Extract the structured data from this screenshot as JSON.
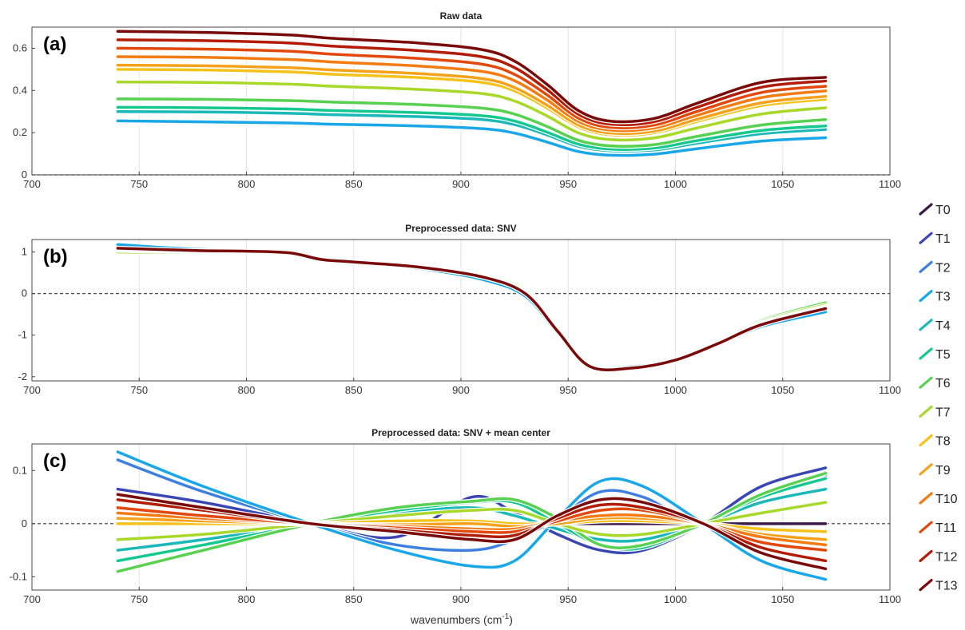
{
  "figure": {
    "xlabel": "wavenumbers (cm",
    "xlabel_sup": "-1",
    "xlabel_close": ")"
  },
  "legend": {
    "entries": [
      {
        "label": "T0",
        "color": "#3b1a4a"
      },
      {
        "label": "T1",
        "color": "#3a46b4"
      },
      {
        "label": "T2",
        "color": "#3f7fe0"
      },
      {
        "label": "T3",
        "color": "#1aa7e8"
      },
      {
        "label": "T4",
        "color": "#1ab8b8"
      },
      {
        "label": "T5",
        "color": "#14c890"
      },
      {
        "label": "T6",
        "color": "#58d150"
      },
      {
        "label": "T7",
        "color": "#a7d82a"
      },
      {
        "label": "T8",
        "color": "#f4c21a"
      },
      {
        "label": "T9",
        "color": "#f6a11a"
      },
      {
        "label": "T10",
        "color": "#f47a12"
      },
      {
        "label": "T11",
        "color": "#e2480c"
      },
      {
        "label": "T12",
        "color": "#b21c06"
      },
      {
        "label": "T13",
        "color": "#7a0a0a"
      }
    ]
  },
  "chart_data": [
    {
      "type": "line",
      "panel_label": "(a)",
      "title": "Raw data",
      "xlim": [
        700,
        1100
      ],
      "ylim": [
        0,
        0.7
      ],
      "xticks": [
        700,
        750,
        800,
        850,
        900,
        950,
        1000,
        1050,
        1100
      ],
      "yticks": [
        0,
        0.2,
        0.4,
        0.6
      ],
      "ytick_labels": [
        "0",
        "0.2",
        "0.4",
        "0.6"
      ],
      "grid": "vertical",
      "zero_line": "dashed",
      "x": [
        740,
        780,
        820,
        840,
        880,
        910,
        925,
        940,
        955,
        970,
        990,
        1010,
        1040,
        1070
      ],
      "series": [
        {
          "name": "T0",
          "values": [
            0.245,
            0.24,
            0.235,
            0.23,
            0.222,
            0.21,
            0.19,
            0.15,
            0.105,
            0.09,
            0.095,
            0.12,
            0.155,
            0.17
          ]
        },
        {
          "name": "T1",
          "values": [
            0.248,
            0.243,
            0.238,
            0.233,
            0.225,
            0.213,
            0.192,
            0.152,
            0.107,
            0.091,
            0.096,
            0.121,
            0.156,
            0.172
          ]
        },
        {
          "name": "T2",
          "values": [
            0.252,
            0.247,
            0.242,
            0.236,
            0.228,
            0.216,
            0.195,
            0.154,
            0.108,
            0.092,
            0.097,
            0.123,
            0.158,
            0.174
          ]
        },
        {
          "name": "T3",
          "values": [
            0.256,
            0.251,
            0.246,
            0.24,
            0.232,
            0.219,
            0.198,
            0.156,
            0.11,
            0.093,
            0.098,
            0.124,
            0.16,
            0.176
          ]
        },
        {
          "name": "T4",
          "values": [
            0.3,
            0.298,
            0.292,
            0.285,
            0.276,
            0.262,
            0.238,
            0.19,
            0.135,
            0.114,
            0.118,
            0.15,
            0.195,
            0.215
          ]
        },
        {
          "name": "T5",
          "values": [
            0.32,
            0.318,
            0.312,
            0.305,
            0.295,
            0.28,
            0.255,
            0.203,
            0.145,
            0.122,
            0.127,
            0.162,
            0.21,
            0.232
          ]
        },
        {
          "name": "T6",
          "values": [
            0.36,
            0.358,
            0.352,
            0.345,
            0.333,
            0.316,
            0.288,
            0.23,
            0.163,
            0.137,
            0.143,
            0.182,
            0.236,
            0.262
          ]
        },
        {
          "name": "T7",
          "values": [
            0.44,
            0.438,
            0.43,
            0.42,
            0.405,
            0.385,
            0.35,
            0.28,
            0.198,
            0.167,
            0.175,
            0.222,
            0.288,
            0.318
          ]
        },
        {
          "name": "T8",
          "values": [
            0.5,
            0.497,
            0.488,
            0.477,
            0.461,
            0.438,
            0.398,
            0.318,
            0.226,
            0.19,
            0.199,
            0.253,
            0.328,
            0.358
          ]
        },
        {
          "name": "T9",
          "values": [
            0.52,
            0.517,
            0.508,
            0.497,
            0.48,
            0.456,
            0.414,
            0.331,
            0.235,
            0.198,
            0.207,
            0.263,
            0.341,
            0.372
          ]
        },
        {
          "name": "T10",
          "values": [
            0.56,
            0.557,
            0.547,
            0.535,
            0.516,
            0.49,
            0.446,
            0.356,
            0.252,
            0.212,
            0.222,
            0.282,
            0.366,
            0.398
          ]
        },
        {
          "name": "T11",
          "values": [
            0.6,
            0.596,
            0.586,
            0.572,
            0.552,
            0.524,
            0.476,
            0.38,
            0.268,
            0.225,
            0.236,
            0.3,
            0.39,
            0.42
          ]
        },
        {
          "name": "T12",
          "values": [
            0.64,
            0.636,
            0.625,
            0.61,
            0.589,
            0.559,
            0.508,
            0.405,
            0.286,
            0.24,
            0.252,
            0.32,
            0.415,
            0.445
          ]
        },
        {
          "name": "T13",
          "values": [
            0.68,
            0.675,
            0.663,
            0.647,
            0.625,
            0.593,
            0.539,
            0.43,
            0.303,
            0.254,
            0.267,
            0.339,
            0.438,
            0.462
          ]
        }
      ]
    },
    {
      "type": "line",
      "panel_label": "(b)",
      "title": "Preprocessed data: SNV",
      "xlim": [
        700,
        1100
      ],
      "ylim": [
        -2.1,
        1.3
      ],
      "xticks": [
        700,
        750,
        800,
        850,
        900,
        950,
        1000,
        1050,
        1100
      ],
      "yticks": [
        -2,
        -1,
        0,
        1
      ],
      "ytick_labels": [
        "-2",
        "-1",
        "0",
        "1"
      ],
      "grid": "vertical",
      "zero_line": "dashed",
      "x": [
        740,
        760,
        780,
        800,
        820,
        835,
        850,
        880,
        910,
        930,
        945,
        960,
        980,
        1000,
        1020,
        1040,
        1070
      ],
      "series": [
        {
          "name": "T0",
          "values": [
            1.12,
            1.08,
            1.04,
            1.02,
            0.98,
            0.82,
            0.76,
            0.64,
            0.4,
            0.0,
            -0.9,
            -1.72,
            -1.78,
            -1.6,
            -1.2,
            -0.75,
            -0.38
          ]
        },
        {
          "name": "T1",
          "values": [
            1.14,
            1.09,
            1.05,
            1.02,
            0.98,
            0.82,
            0.76,
            0.63,
            0.38,
            -0.02,
            -0.92,
            -1.73,
            -1.77,
            -1.6,
            -1.21,
            -0.77,
            -0.4
          ]
        },
        {
          "name": "T2",
          "values": [
            1.16,
            1.1,
            1.05,
            1.02,
            0.98,
            0.82,
            0.75,
            0.62,
            0.36,
            -0.04,
            -0.93,
            -1.74,
            -1.77,
            -1.59,
            -1.22,
            -0.78,
            -0.42
          ]
        },
        {
          "name": "T3",
          "values": [
            1.18,
            1.11,
            1.06,
            1.02,
            0.98,
            0.81,
            0.75,
            0.61,
            0.34,
            -0.06,
            -0.94,
            -1.74,
            -1.76,
            -1.59,
            -1.22,
            -0.79,
            -0.44
          ]
        },
        {
          "name": "T4",
          "values": [
            1.02,
            1.0,
            0.99,
            1.01,
            0.98,
            0.83,
            0.77,
            0.66,
            0.45,
            0.06,
            -0.86,
            -1.8,
            -1.85,
            -1.64,
            -1.17,
            -0.68,
            -0.26
          ]
        },
        {
          "name": "T5",
          "values": [
            1.0,
            0.99,
            0.99,
            1.01,
            0.98,
            0.83,
            0.77,
            0.67,
            0.46,
            0.08,
            -0.85,
            -1.81,
            -1.86,
            -1.65,
            -1.16,
            -0.66,
            -0.24
          ]
        },
        {
          "name": "T6",
          "values": [
            0.99,
            0.98,
            0.98,
            1.01,
            0.98,
            0.83,
            0.78,
            0.67,
            0.47,
            0.09,
            -0.84,
            -1.82,
            -1.86,
            -1.65,
            -1.15,
            -0.65,
            -0.22
          ]
        },
        {
          "name": "T7",
          "values": [
            1.0,
            0.99,
            0.99,
            1.01,
            0.98,
            0.83,
            0.77,
            0.66,
            0.45,
            0.07,
            -0.86,
            -1.8,
            -1.84,
            -1.63,
            -1.17,
            -0.68,
            -0.27
          ]
        },
        {
          "name": "T8",
          "values": [
            1.04,
            1.02,
            1.01,
            1.01,
            0.98,
            0.82,
            0.77,
            0.65,
            0.43,
            0.04,
            -0.88,
            -1.78,
            -1.82,
            -1.62,
            -1.18,
            -0.71,
            -0.31
          ]
        },
        {
          "name": "T9",
          "values": [
            1.05,
            1.03,
            1.01,
            1.01,
            0.98,
            0.82,
            0.77,
            0.65,
            0.42,
            0.03,
            -0.88,
            -1.77,
            -1.81,
            -1.62,
            -1.19,
            -0.72,
            -0.32
          ]
        },
        {
          "name": "T10",
          "values": [
            1.06,
            1.04,
            1.02,
            1.01,
            0.98,
            0.82,
            0.76,
            0.65,
            0.42,
            0.02,
            -0.89,
            -1.77,
            -1.81,
            -1.61,
            -1.19,
            -0.73,
            -0.33
          ]
        },
        {
          "name": "T11",
          "values": [
            1.07,
            1.05,
            1.02,
            1.01,
            0.98,
            0.82,
            0.76,
            0.64,
            0.41,
            0.01,
            -0.89,
            -1.76,
            -1.8,
            -1.61,
            -1.19,
            -0.74,
            -0.34
          ]
        },
        {
          "name": "T12",
          "values": [
            1.08,
            1.05,
            1.03,
            1.02,
            0.98,
            0.82,
            0.76,
            0.64,
            0.4,
            0.0,
            -0.9,
            -1.75,
            -1.79,
            -1.6,
            -1.2,
            -0.75,
            -0.35
          ]
        },
        {
          "name": "T13",
          "values": [
            1.09,
            1.06,
            1.03,
            1.02,
            0.98,
            0.82,
            0.76,
            0.64,
            0.4,
            0.0,
            -0.9,
            -1.75,
            -1.79,
            -1.6,
            -1.2,
            -0.75,
            -0.36
          ]
        }
      ]
    },
    {
      "type": "line",
      "panel_label": "(c)",
      "title": "Preprocessed data: SNV + mean center",
      "xlim": [
        700,
        1100
      ],
      "ylim": [
        -0.125,
        0.15
      ],
      "xticks": [
        700,
        750,
        800,
        850,
        900,
        950,
        1000,
        1050,
        1100
      ],
      "yticks": [
        -0.1,
        0,
        0.1
      ],
      "ytick_labels": [
        "-0.1",
        "0",
        "0.1"
      ],
      "grid": "vertical",
      "zero_line": "dashed",
      "x": [
        740,
        780,
        830,
        870,
        905,
        925,
        945,
        965,
        985,
        1013,
        1040,
        1070
      ],
      "series": [
        {
          "name": "T0",
          "values": [
            0.0,
            0.0,
            0.0,
            0.0,
            0.0,
            0.0,
            0.0,
            0.0,
            0.0,
            0.0,
            0.0,
            0.0
          ]
        },
        {
          "name": "T1",
          "values": [
            0.065,
            0.04,
            0.0,
            -0.025,
            0.05,
            0.02,
            -0.02,
            -0.05,
            -0.05,
            0.0,
            0.07,
            0.105
          ]
        },
        {
          "name": "T2",
          "values": [
            0.12,
            0.06,
            0.0,
            -0.04,
            -0.05,
            -0.03,
            0.01,
            0.06,
            0.05,
            0.0,
            0.05,
            0.09
          ]
        },
        {
          "name": "T3",
          "values": [
            0.135,
            0.07,
            0.0,
            -0.05,
            -0.08,
            -0.07,
            0.01,
            0.08,
            0.07,
            0.0,
            -0.07,
            -0.105
          ]
        },
        {
          "name": "T4",
          "values": [
            -0.05,
            -0.03,
            0.0,
            0.02,
            0.03,
            0.015,
            -0.01,
            -0.03,
            -0.03,
            0.0,
            0.04,
            0.065
          ]
        },
        {
          "name": "T5",
          "values": [
            -0.07,
            -0.04,
            0.0,
            0.025,
            0.04,
            0.04,
            0.0,
            -0.04,
            -0.045,
            0.0,
            0.05,
            0.085
          ]
        },
        {
          "name": "T6",
          "values": [
            -0.09,
            -0.05,
            0.0,
            0.03,
            0.042,
            0.045,
            0.01,
            -0.04,
            -0.04,
            0.0,
            0.055,
            0.095
          ]
        },
        {
          "name": "T7",
          "values": [
            -0.03,
            -0.02,
            0.0,
            0.015,
            0.025,
            0.025,
            0.0,
            -0.02,
            -0.02,
            0.0,
            0.02,
            0.04
          ]
        },
        {
          "name": "T8",
          "values": [
            0.0,
            0.0,
            0.0,
            0.005,
            0.005,
            0.0,
            0.0,
            0.005,
            0.005,
            0.0,
            -0.01,
            -0.015
          ]
        },
        {
          "name": "T9",
          "values": [
            0.01,
            0.005,
            0.0,
            -0.002,
            0.0,
            -0.005,
            0.0,
            0.01,
            0.01,
            0.0,
            -0.02,
            -0.03
          ]
        },
        {
          "name": "T10",
          "values": [
            0.02,
            0.01,
            0.0,
            -0.005,
            -0.01,
            -0.01,
            0.005,
            0.015,
            0.015,
            0.0,
            -0.025,
            -0.04
          ]
        },
        {
          "name": "T11",
          "values": [
            0.03,
            0.015,
            0.0,
            -0.008,
            -0.015,
            -0.015,
            0.005,
            0.025,
            0.025,
            0.0,
            -0.035,
            -0.05
          ]
        },
        {
          "name": "T12",
          "values": [
            0.045,
            0.025,
            0.0,
            -0.012,
            -0.022,
            -0.022,
            0.01,
            0.035,
            0.03,
            0.0,
            -0.045,
            -0.07
          ]
        },
        {
          "name": "T13",
          "values": [
            0.055,
            0.03,
            0.0,
            -0.015,
            -0.03,
            -0.03,
            0.015,
            0.045,
            0.04,
            0.0,
            -0.055,
            -0.085
          ]
        }
      ]
    }
  ]
}
